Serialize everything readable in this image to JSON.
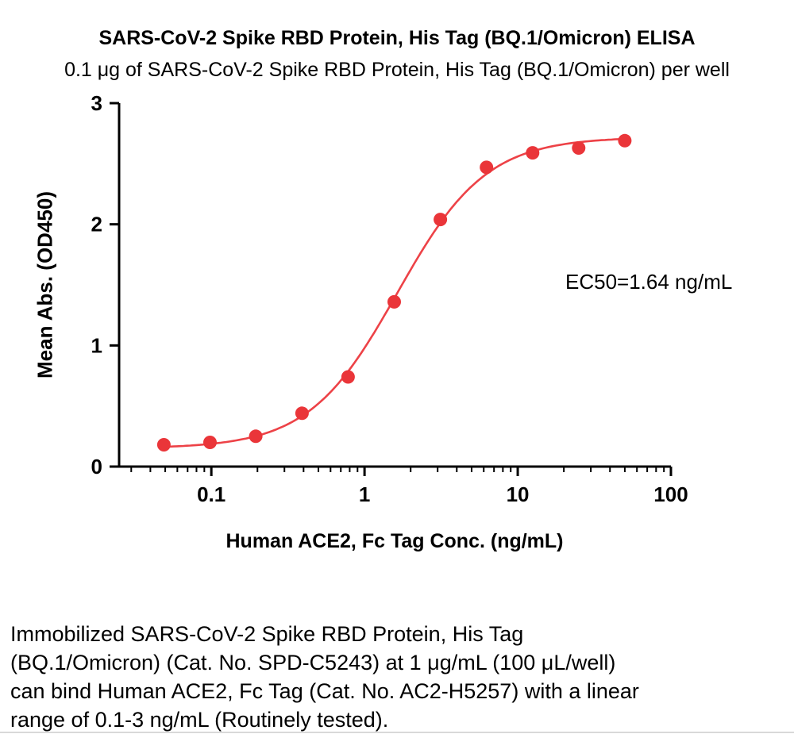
{
  "chart_data": {
    "type": "scatter",
    "title": "SARS-CoV-2 Spike RBD Protein, His Tag (BQ.1/Omicron) ELISA",
    "subtitle": "0.1 μg of SARS-CoV-2 Spike RBD Protein, His Tag (BQ.1/Omicron) per well",
    "xlabel": "Human ACE2, Fc Tag Conc. (ng/mL)",
    "ylabel": "Mean Abs. (OD450)",
    "xscale": "log",
    "xlim": [
      0.025,
      100
    ],
    "ylim": [
      0,
      3
    ],
    "xticks": [
      0.1,
      1,
      10,
      100
    ],
    "yticks": [
      0,
      1,
      2,
      3
    ],
    "x": [
      0.049,
      0.098,
      0.195,
      0.391,
      0.781,
      1.563,
      3.125,
      6.25,
      12.5,
      25,
      50
    ],
    "y": [
      0.18,
      0.2,
      0.25,
      0.44,
      0.74,
      1.36,
      2.04,
      2.47,
      2.59,
      2.63,
      2.69
    ],
    "fit": {
      "model": "4PL",
      "bottom": 0.15,
      "top": 2.72,
      "ec50": 1.64,
      "hill": 1.5
    },
    "ec50_label": "EC50=1.64 ng/mL",
    "point_color": "#EA3539",
    "curve_color": "#ED4247",
    "axis_color": "#000000",
    "grid": false,
    "legend": "none"
  },
  "footer": {
    "lines": [
      "Immobilized SARS-CoV-2 Spike RBD Protein, His Tag",
      "(BQ.1/Omicron) (Cat. No. SPD-C5243) at 1 μg/mL (100 μL/well)",
      "can bind Human ACE2, Fc Tag (Cat. No. AC2-H5257) with a linear",
      "range of 0.1-3 ng/mL (Routinely tested)."
    ]
  }
}
